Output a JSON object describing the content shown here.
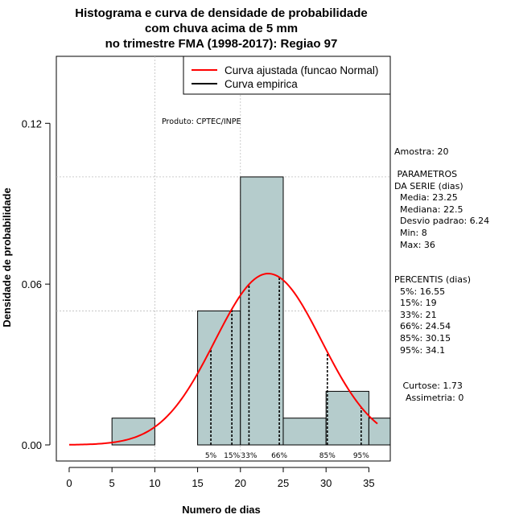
{
  "chart_data": {
    "type": "bar",
    "title_lines": [
      "Histograma e curva de densidade de probabilidade",
      "com chuva acima de 5 mm",
      "no trimestre FMA (1998-2017): Regiao 97"
    ],
    "xlabel": "Numero de dias",
    "ylabel": "Densidade de probabilidade",
    "xlim": [
      -1.5,
      37.5
    ],
    "ylim": [
      -0.006,
      0.145
    ],
    "x_ticks": [
      0,
      5,
      10,
      15,
      20,
      25,
      30,
      35
    ],
    "y_ticks": [
      0.0,
      0.06,
      0.12
    ],
    "y_tick_labels": [
      "0.00",
      "0.06",
      "0.12"
    ],
    "grid_y": [
      0.05,
      0.1
    ],
    "grid_x": [
      10,
      20
    ],
    "bins": [
      {
        "from": 5,
        "to": 10,
        "density": 0.01
      },
      {
        "from": 10,
        "to": 15,
        "density": 0.0
      },
      {
        "from": 15,
        "to": 20,
        "density": 0.05
      },
      {
        "from": 20,
        "to": 25,
        "density": 0.1
      },
      {
        "from": 25,
        "to": 30,
        "density": 0.01
      },
      {
        "from": 30,
        "to": 35,
        "density": 0.02
      },
      {
        "from": 35,
        "to": 40,
        "density": 0.01
      }
    ],
    "normal_curve": {
      "mean": 23.25,
      "sd": 6.24,
      "x_from": 0,
      "x_to": 36
    },
    "legend": [
      {
        "label": "Curva ajustada (funcao Normal)",
        "color": "#ff0000"
      },
      {
        "label": "Curva empirica",
        "color": "#000000"
      }
    ],
    "annotation": "Produto: CPTEC/INPE",
    "percentile_marks": [
      {
        "label": "5%",
        "x": 16.55
      },
      {
        "label": "15%",
        "x": 19
      },
      {
        "label": "33%",
        "x": 21
      },
      {
        "label": "66%",
        "x": 24.54
      },
      {
        "label": "85%",
        "x": 30.15
      },
      {
        "label": "95%",
        "x": 34.1
      }
    ],
    "colors": {
      "bar_fill": "#b5cccc",
      "curve": "#ff0000",
      "grid": "#bebebe"
    }
  },
  "side_panel": {
    "sample": "Amostra: 20",
    "params_title_1": " PARAMETROS",
    "params_title_2": "DA SERIE (dias)",
    "media": "  Media: 23.25",
    "mediana": "  Mediana: 22.5",
    "desvio": "  Desvio padrao: 6.24",
    "min": "  Min: 8",
    "max": "  Max: 36",
    "percentis_title": "PERCENTIS (dias)",
    "p5": "  5%: 16.55",
    "p15": "  15%: 19",
    "p33": "  33%: 21",
    "p66": "  66%: 24.54",
    "p85": "  85%: 30.15",
    "p95": "  95%: 34.1",
    "curtose": "   Curtose: 1.73",
    "assimetria": "    Assimetria: 0"
  }
}
